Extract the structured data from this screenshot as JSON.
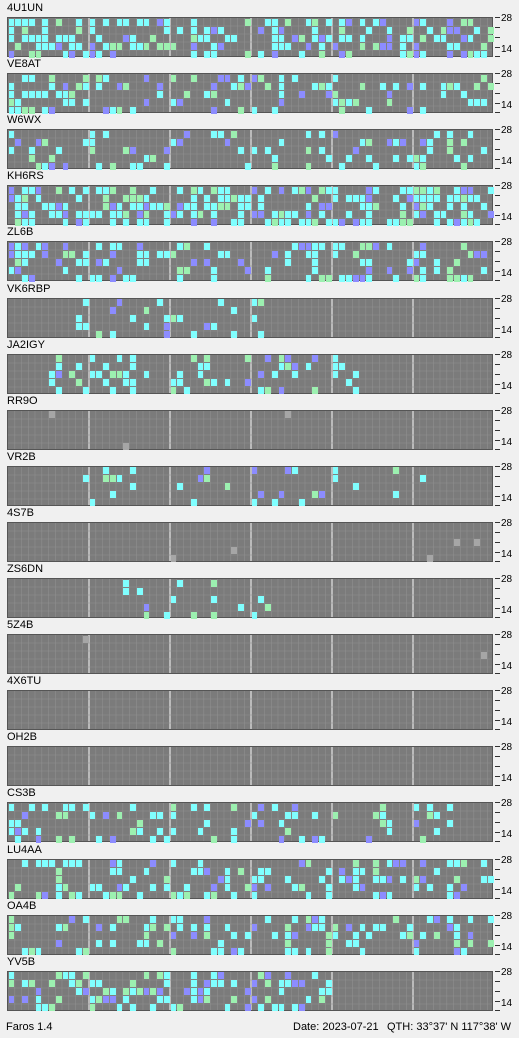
{
  "app": {
    "version_label": "Faros 1.4"
  },
  "status": {
    "date": "Date: 2023-07-21",
    "qth": "QTH: 33°37' N  117°38' W"
  },
  "axis": {
    "top_band": "28",
    "bottom_band": "14"
  },
  "colors": {
    "empty": "#7b7b7b",
    "cell_outline": "#8f8f8f",
    "hour_line": "#e6e6e6",
    "strong": "#80ffff",
    "medium": "#9cf0b0",
    "weak": "#8c8cff",
    "faint": "#a6a6a6"
  },
  "beacons": [
    {
      "call": "4U1UN"
    },
    {
      "call": "VE8AT"
    },
    {
      "call": "W6WX"
    },
    {
      "call": "KH6RS"
    },
    {
      "call": "ZL6B"
    },
    {
      "call": "VK6RBP"
    },
    {
      "call": "JA2IGY"
    },
    {
      "call": "RR9O"
    },
    {
      "call": "VR2B"
    },
    {
      "call": "4S7B"
    },
    {
      "call": "ZS6DN"
    },
    {
      "call": "5Z4B"
    },
    {
      "call": "4X6TU"
    },
    {
      "call": "OH2B"
    },
    {
      "call": "CS3B"
    },
    {
      "call": "LU4AA"
    },
    {
      "call": "OA4B"
    },
    {
      "call": "YV5B"
    }
  ]
}
